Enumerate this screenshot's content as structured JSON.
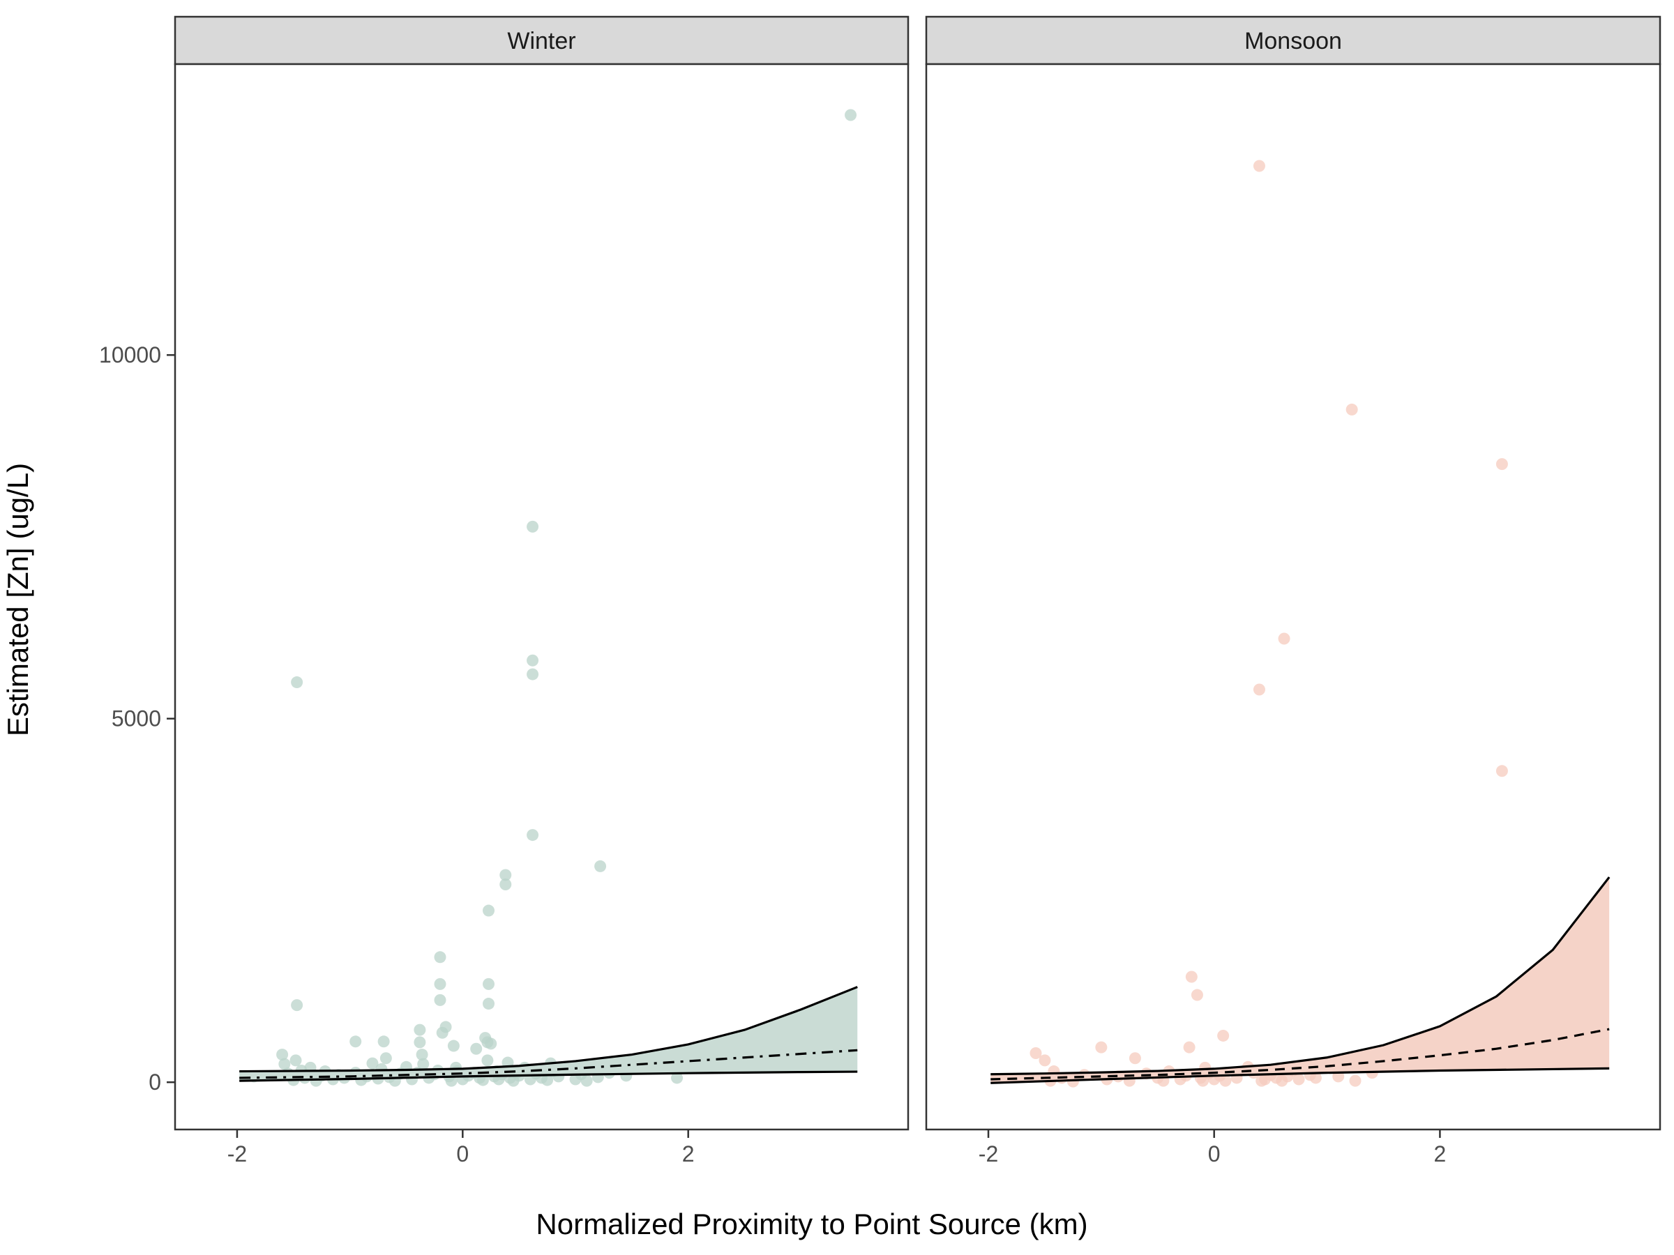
{
  "chart_data": {
    "type": "scatter",
    "xlabel": "Normalized Proximity to Point Source (km)",
    "ylabel": "Estimated [Zn] (ug/L)",
    "xlim": [
      -2.55,
      3.95
    ],
    "ylim": [
      -650,
      14000
    ],
    "x_ticks": [
      -2,
      0,
      2
    ],
    "x_tick_labels": [
      "-2",
      "0",
      "2"
    ],
    "y_ticks": [
      0,
      5000,
      10000
    ],
    "y_tick_labels": [
      "0",
      "5000",
      "10000"
    ],
    "grid": false,
    "legend": "none",
    "panels": [
      {
        "name": "Winter",
        "point_color": "#b9d3c9",
        "band_color": "#cadcd5",
        "mean_line_style": "dashdot",
        "points": [
          [
            -1.85,
            80
          ],
          [
            -1.6,
            380
          ],
          [
            -1.58,
            250
          ],
          [
            -1.55,
            120
          ],
          [
            -1.5,
            30
          ],
          [
            -1.48,
            300
          ],
          [
            -1.47,
            5500
          ],
          [
            -1.47,
            1060
          ],
          [
            -1.43,
            160
          ],
          [
            -1.4,
            60
          ],
          [
            -1.35,
            200
          ],
          [
            -1.3,
            20
          ],
          [
            -1.25,
            90
          ],
          [
            -1.22,
            150
          ],
          [
            -1.15,
            40
          ],
          [
            -1.1,
            100
          ],
          [
            -1.05,
            60
          ],
          [
            -0.95,
            130
          ],
          [
            -0.95,
            560
          ],
          [
            -0.9,
            30
          ],
          [
            -0.85,
            80
          ],
          [
            -0.8,
            260
          ],
          [
            -0.75,
            50
          ],
          [
            -0.72,
            180
          ],
          [
            -0.7,
            560
          ],
          [
            -0.68,
            330
          ],
          [
            -0.65,
            70
          ],
          [
            -0.6,
            20
          ],
          [
            -0.55,
            120
          ],
          [
            -0.5,
            210
          ],
          [
            -0.45,
            40
          ],
          [
            -0.4,
            130
          ],
          [
            -0.38,
            720
          ],
          [
            -0.38,
            550
          ],
          [
            -0.36,
            380
          ],
          [
            -0.35,
            250
          ],
          [
            -0.3,
            60
          ],
          [
            -0.25,
            110
          ],
          [
            -0.22,
            160
          ],
          [
            -0.2,
            1720
          ],
          [
            -0.2,
            1350
          ],
          [
            -0.2,
            1130
          ],
          [
            -0.18,
            680
          ],
          [
            -0.15,
            760
          ],
          [
            -0.12,
            80
          ],
          [
            -0.1,
            20
          ],
          [
            -0.08,
            500
          ],
          [
            -0.06,
            200
          ],
          [
            -0.05,
            150
          ],
          [
            0.0,
            40
          ],
          [
            0.05,
            90
          ],
          [
            0.1,
            130
          ],
          [
            0.12,
            460
          ],
          [
            0.15,
            60
          ],
          [
            0.18,
            30
          ],
          [
            0.2,
            610
          ],
          [
            0.22,
            550
          ],
          [
            0.22,
            300
          ],
          [
            0.23,
            2360
          ],
          [
            0.23,
            1350
          ],
          [
            0.23,
            1080
          ],
          [
            0.25,
            530
          ],
          [
            0.28,
            80
          ],
          [
            0.3,
            150
          ],
          [
            0.32,
            40
          ],
          [
            0.35,
            110
          ],
          [
            0.38,
            2850
          ],
          [
            0.38,
            2720
          ],
          [
            0.4,
            270
          ],
          [
            0.42,
            60
          ],
          [
            0.45,
            20
          ],
          [
            0.48,
            130
          ],
          [
            0.5,
            90
          ],
          [
            0.55,
            200
          ],
          [
            0.6,
            40
          ],
          [
            0.62,
            7640
          ],
          [
            0.62,
            5800
          ],
          [
            0.62,
            5610
          ],
          [
            0.62,
            3400
          ],
          [
            0.65,
            120
          ],
          [
            0.7,
            60
          ],
          [
            0.75,
            30
          ],
          [
            0.78,
            260
          ],
          [
            0.8,
            150
          ],
          [
            0.85,
            80
          ],
          [
            1.0,
            40
          ],
          [
            1.05,
            110
          ],
          [
            1.1,
            20
          ],
          [
            1.2,
            70
          ],
          [
            1.22,
            2970
          ],
          [
            1.3,
            130
          ],
          [
            1.45,
            90
          ],
          [
            1.9,
            60
          ],
          [
            3.44,
            13300
          ]
        ],
        "upper_band": [
          [
            -1.98,
            150
          ],
          [
            -1.5,
            155
          ],
          [
            -1.0,
            160
          ],
          [
            -0.5,
            170
          ],
          [
            0.0,
            185
          ],
          [
            0.5,
            225
          ],
          [
            1.0,
            290
          ],
          [
            1.5,
            380
          ],
          [
            2.0,
            520
          ],
          [
            2.5,
            720
          ],
          [
            3.0,
            1000
          ],
          [
            3.5,
            1310
          ]
        ],
        "lower_band": [
          [
            -1.98,
            20
          ],
          [
            -1.0,
            45
          ],
          [
            0.0,
            80
          ],
          [
            1.0,
            105
          ],
          [
            2.0,
            125
          ],
          [
            3.0,
            140
          ],
          [
            3.5,
            145
          ]
        ],
        "mean_line": [
          [
            -1.98,
            60
          ],
          [
            -1.0,
            80
          ],
          [
            0.0,
            120
          ],
          [
            0.5,
            150
          ],
          [
            1.0,
            190
          ],
          [
            1.5,
            240
          ],
          [
            2.0,
            290
          ],
          [
            2.5,
            340
          ],
          [
            3.0,
            390
          ],
          [
            3.5,
            440
          ]
        ]
      },
      {
        "name": "Monsoon",
        "point_color": "#f6cbbd",
        "band_color": "#f5d3c8",
        "mean_line_style": "dashed",
        "points": [
          [
            -1.58,
            400
          ],
          [
            -1.5,
            300
          ],
          [
            -1.45,
            20
          ],
          [
            -1.42,
            150
          ],
          [
            -1.35,
            60
          ],
          [
            -1.25,
            10
          ],
          [
            -1.15,
            100
          ],
          [
            -1.0,
            480
          ],
          [
            -0.95,
            40
          ],
          [
            -0.85,
            80
          ],
          [
            -0.75,
            20
          ],
          [
            -0.7,
            330
          ],
          [
            -0.6,
            120
          ],
          [
            -0.5,
            60
          ],
          [
            -0.45,
            20
          ],
          [
            -0.4,
            150
          ],
          [
            -0.3,
            40
          ],
          [
            -0.25,
            90
          ],
          [
            -0.22,
            480
          ],
          [
            -0.2,
            1450
          ],
          [
            -0.15,
            1200
          ],
          [
            -0.12,
            60
          ],
          [
            -0.1,
            20
          ],
          [
            -0.08,
            200
          ],
          [
            -0.05,
            120
          ],
          [
            0.0,
            40
          ],
          [
            0.05,
            90
          ],
          [
            0.08,
            640
          ],
          [
            0.1,
            20
          ],
          [
            0.2,
            60
          ],
          [
            0.3,
            210
          ],
          [
            0.35,
            130
          ],
          [
            0.4,
            12600
          ],
          [
            0.4,
            5400
          ],
          [
            0.42,
            20
          ],
          [
            0.45,
            40
          ],
          [
            0.5,
            100
          ],
          [
            0.55,
            60
          ],
          [
            0.6,
            20
          ],
          [
            0.62,
            6100
          ],
          [
            0.65,
            80
          ],
          [
            0.7,
            160
          ],
          [
            0.75,
            40
          ],
          [
            0.85,
            100
          ],
          [
            0.9,
            60
          ],
          [
            1.1,
            80
          ],
          [
            1.22,
            9250
          ],
          [
            1.25,
            20
          ],
          [
            1.4,
            130
          ],
          [
            2.55,
            8500
          ],
          [
            2.55,
            4280
          ],
          [
            3.44,
            280
          ]
        ],
        "upper_band": [
          [
            -1.98,
            110
          ],
          [
            -1.5,
            120
          ],
          [
            -1.0,
            135
          ],
          [
            -0.5,
            155
          ],
          [
            0.0,
            185
          ],
          [
            0.5,
            240
          ],
          [
            1.0,
            340
          ],
          [
            1.5,
            510
          ],
          [
            2.0,
            770
          ],
          [
            2.5,
            1180
          ],
          [
            3.0,
            1820
          ],
          [
            3.5,
            2820
          ]
        ],
        "lower_band": [
          [
            -1.98,
            -10
          ],
          [
            -1.0,
            40
          ],
          [
            0.0,
            90
          ],
          [
            1.0,
            130
          ],
          [
            2.0,
            160
          ],
          [
            3.0,
            180
          ],
          [
            3.5,
            190
          ]
        ],
        "mean_line": [
          [
            -1.98,
            40
          ],
          [
            -1.5,
            60
          ],
          [
            -1.0,
            80
          ],
          [
            -0.5,
            100
          ],
          [
            0.0,
            130
          ],
          [
            0.5,
            170
          ],
          [
            1.0,
            220
          ],
          [
            1.5,
            290
          ],
          [
            2.0,
            370
          ],
          [
            2.5,
            460
          ],
          [
            3.0,
            580
          ],
          [
            3.5,
            730
          ]
        ]
      }
    ]
  }
}
